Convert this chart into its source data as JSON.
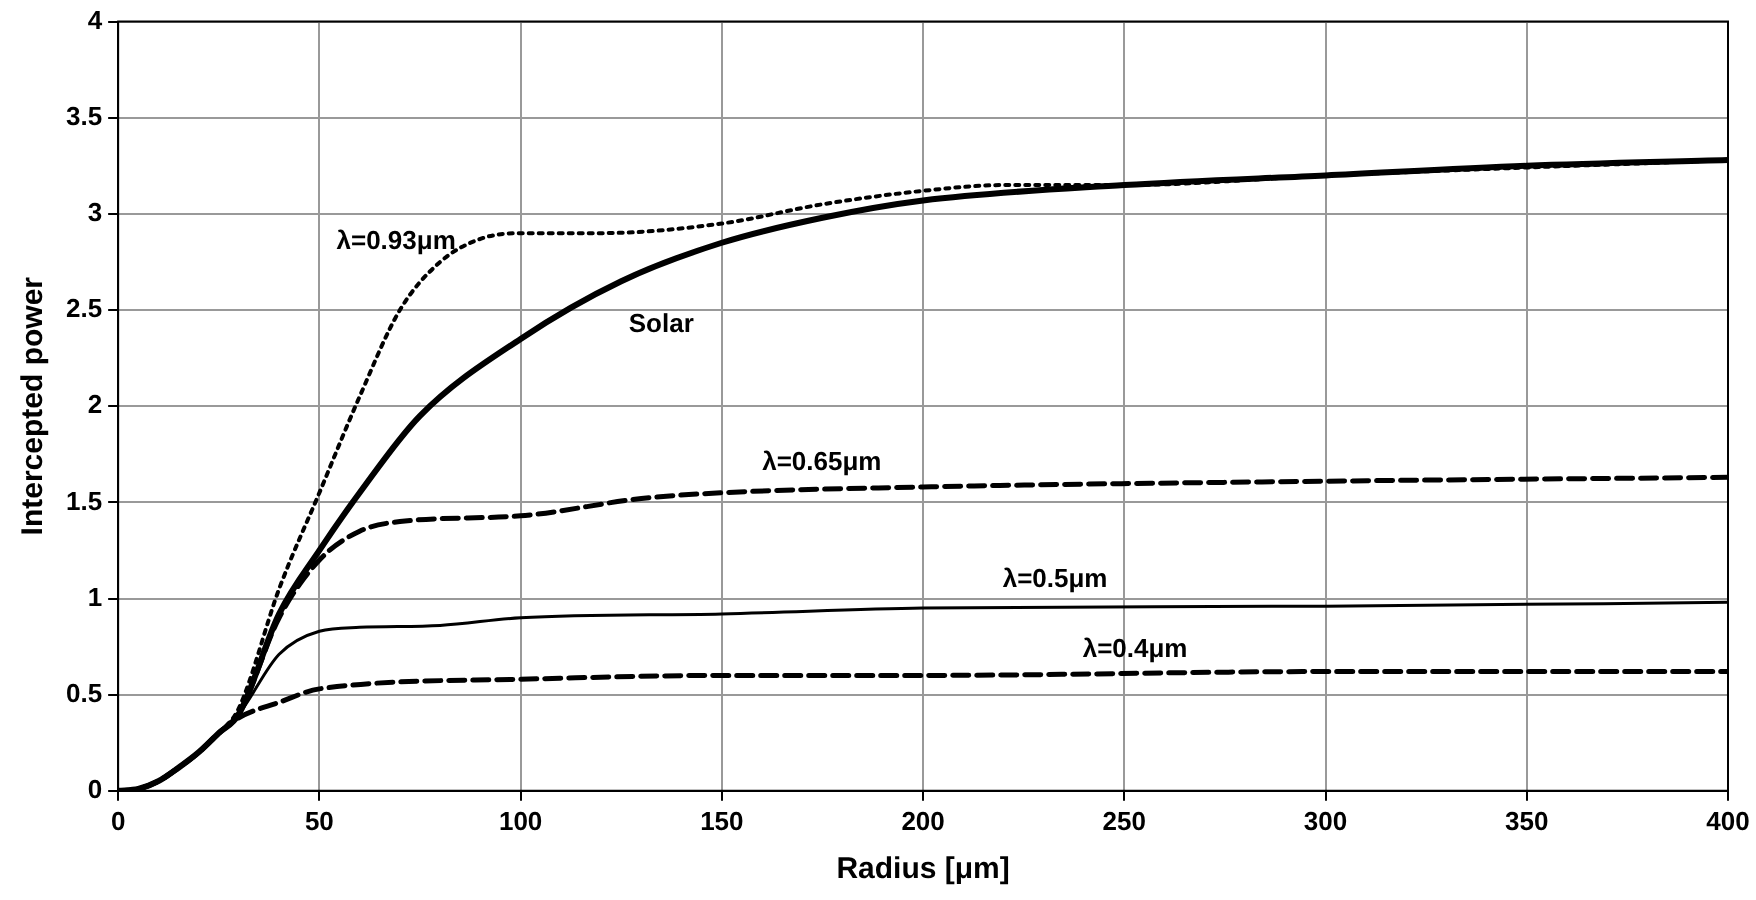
{
  "chart_data": {
    "type": "line",
    "xlabel": "Radius [μm]",
    "ylabel": "Intercepted power",
    "xlim": [
      0,
      400
    ],
    "xticks": [
      0,
      50,
      100,
      150,
      200,
      250,
      300,
      350,
      400
    ],
    "ylim": [
      0,
      4
    ],
    "yticks": [
      0,
      0.5,
      1,
      1.5,
      2,
      2.5,
      3,
      3.5,
      4
    ],
    "grid": true,
    "legend": false,
    "marker": "none",
    "series": [
      {
        "name": "λ=0.93μm",
        "color": "#000000",
        "line_style": "dotted",
        "x": [
          0,
          5,
          10,
          15,
          20,
          25,
          30,
          40,
          50,
          60,
          70,
          80,
          90,
          100,
          120,
          150,
          175,
          200,
          220,
          250,
          300,
          400
        ],
        "values": [
          0,
          0.01,
          0.05,
          0.12,
          0.2,
          0.3,
          0.43,
          1.05,
          1.55,
          2.05,
          2.5,
          2.75,
          2.87,
          2.9,
          2.9,
          2.95,
          3.05,
          3.12,
          3.15,
          3.15,
          3.2,
          3.28
        ]
      },
      {
        "name": "Solar",
        "color": "#000000",
        "line_style": "solid",
        "x": [
          0,
          5,
          10,
          15,
          20,
          25,
          30,
          40,
          50,
          60,
          75,
          100,
          125,
          150,
          175,
          200,
          250,
          300,
          350,
          400
        ],
        "values": [
          0,
          0.01,
          0.05,
          0.12,
          0.2,
          0.3,
          0.4,
          0.92,
          1.25,
          1.55,
          1.95,
          2.35,
          2.65,
          2.85,
          2.98,
          3.07,
          3.15,
          3.2,
          3.25,
          3.28
        ]
      },
      {
        "name": "λ=0.65μm",
        "color": "#000000",
        "line_style": "dashed",
        "x": [
          0,
          5,
          10,
          15,
          20,
          25,
          30,
          40,
          50,
          60,
          70,
          100,
          130,
          150,
          200,
          300,
          400
        ],
        "values": [
          0,
          0.01,
          0.05,
          0.12,
          0.2,
          0.3,
          0.4,
          0.9,
          1.2,
          1.35,
          1.4,
          1.43,
          1.52,
          1.55,
          1.58,
          1.61,
          1.63
        ]
      },
      {
        "name": "λ=0.5μm",
        "color": "#000000",
        "line_style": "solid",
        "x": [
          0,
          5,
          10,
          15,
          20,
          25,
          30,
          40,
          50,
          60,
          80,
          100,
          150,
          200,
          300,
          400
        ],
        "values": [
          0,
          0.01,
          0.05,
          0.12,
          0.2,
          0.3,
          0.4,
          0.71,
          0.83,
          0.85,
          0.86,
          0.9,
          0.92,
          0.95,
          0.96,
          0.98
        ]
      },
      {
        "name": "λ=0.4μm",
        "color": "#000000",
        "line_style": "dashed",
        "x": [
          0,
          5,
          10,
          15,
          20,
          25,
          30,
          40,
          50,
          100,
          150,
          200,
          300,
          400
        ],
        "values": [
          0,
          0.01,
          0.05,
          0.12,
          0.2,
          0.3,
          0.38,
          0.46,
          0.53,
          0.58,
          0.6,
          0.6,
          0.62,
          0.62
        ]
      }
    ]
  }
}
